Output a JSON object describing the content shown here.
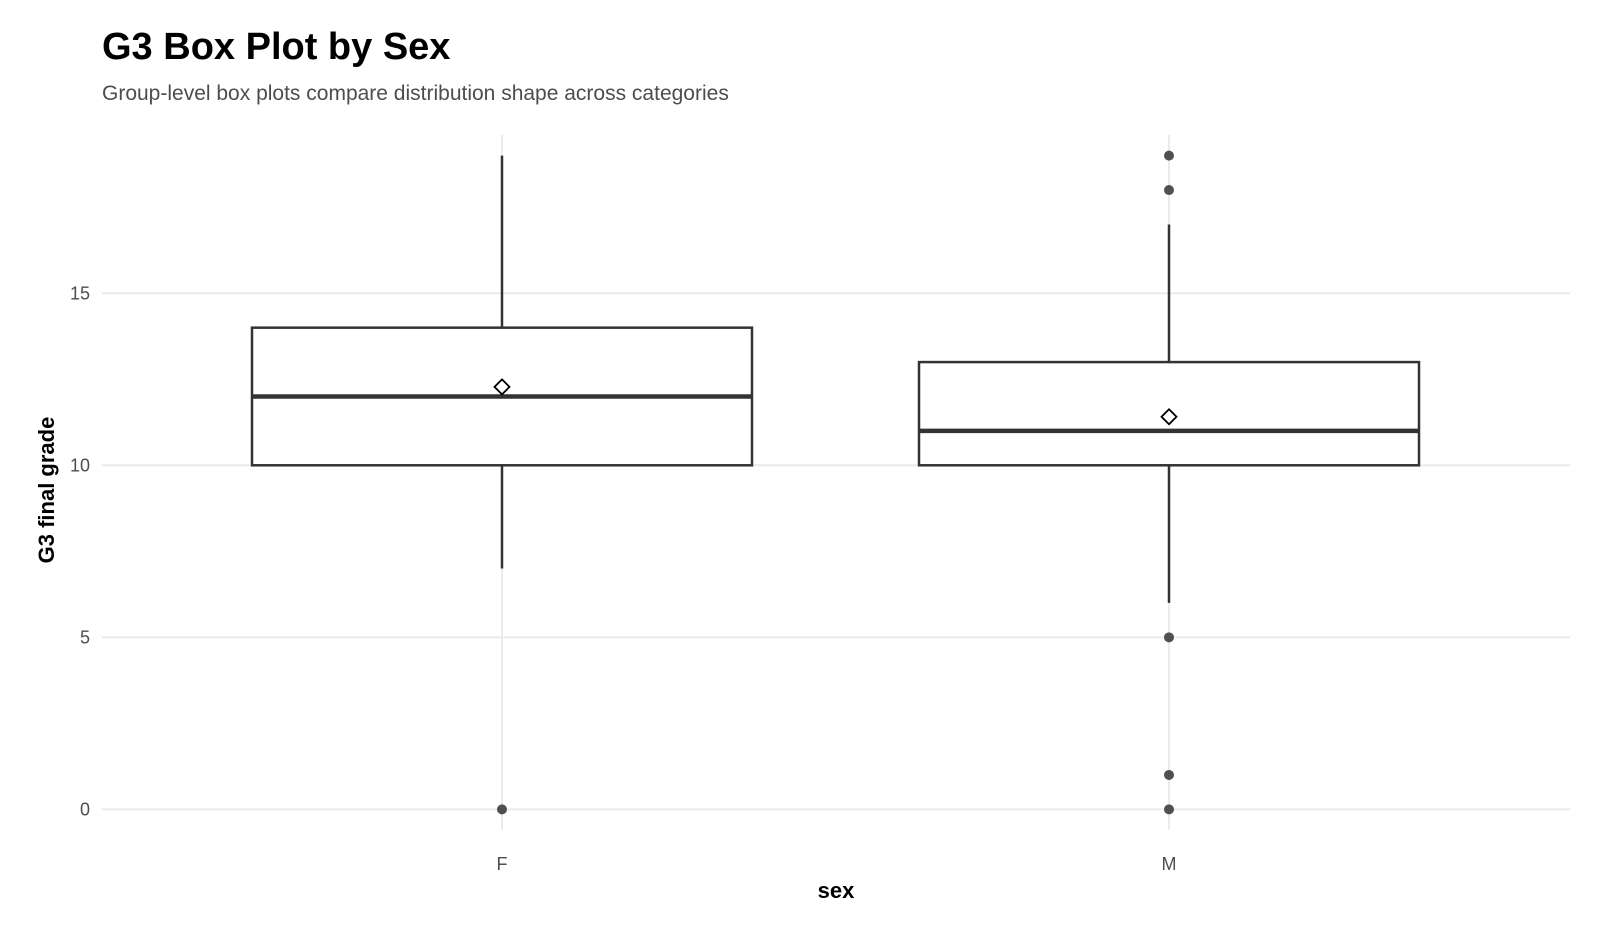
{
  "chart_data": {
    "type": "box",
    "title": "G3 Box Plot by Sex",
    "subtitle": "Group-level box plots compare distribution shape across categories",
    "xlabel": "sex",
    "ylabel": "G3 final grade",
    "categories": [
      "F",
      "M"
    ],
    "ylim": [
      -0.6,
      19.6
    ],
    "yticks": [
      0,
      5,
      10,
      15
    ],
    "ytick_labels": [
      "0",
      "5",
      "10",
      "15"
    ],
    "grid": true,
    "boxes": [
      {
        "category": "F",
        "whisker_low": 7,
        "q1": 10,
        "median": 12,
        "q3": 14,
        "whisker_high": 19,
        "mean": 12.28,
        "outliers": [
          0
        ]
      },
      {
        "category": "M",
        "whisker_low": 6,
        "q1": 10,
        "median": 11,
        "q3": 13,
        "whisker_high": 17,
        "mean": 11.41,
        "outliers": [
          19,
          18,
          5,
          1,
          0
        ]
      }
    ],
    "colors": {
      "box_stroke": "#333333",
      "box_fill": "#ffffff",
      "grid": "#ebebeb",
      "outlier": "#333333",
      "mean_marker": "#000000"
    }
  }
}
